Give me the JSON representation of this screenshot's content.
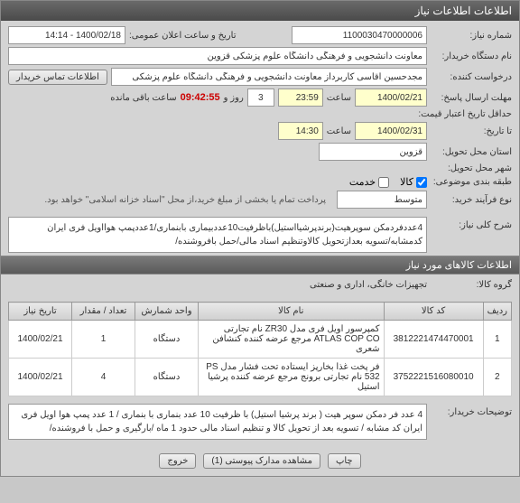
{
  "window_title": "اطلاعات اطلاعات نیاز",
  "form": {
    "need_number_label": "شماره نیاز:",
    "need_number": "1100030470000006",
    "public_announce_label": "تاریخ و ساعت اعلان عمومی:",
    "public_announce": "1400/02/18 - 14:14",
    "buyer_device_label": "نام دستگاه خریدار:",
    "buyer_device": "معاونت دانشجویی و فرهنگی دانشگاه علوم پزشکی قزوین",
    "requester_label": "درخواست کننده:",
    "requester": "مجدحسین آقاسی کاربرداز معاونت دانشجویی و فرهنگی دانشگاه علوم پزشکی",
    "contact_btn": "اطلاعات تماس خریدار",
    "deadline_label": "مهلت ارسال پاسخ:",
    "deadline_date": "1400/02/21",
    "time_label": "ساعت",
    "deadline_time": "23:59",
    "days_remaining": "3",
    "days_label": "روز و",
    "timer": "09:42:55",
    "remaining_label": "ساعت باقی مانده",
    "min_validity_label": "حداقل تاریخ اعتبار قیمت:",
    "until_label": "تا تاریخ:",
    "until_date": "1400/02/31",
    "until_time": "14:30",
    "delivery_state_label": "استان محل تحویل:",
    "delivery_state": "قزوین",
    "delivery_city_label": "شهر محل تحویل:",
    "budget_label": "طبقه بندی موضوعی:",
    "goods_chk": "کالا",
    "service_chk": "خدمت",
    "process_type_label": "نوع فرآیند خرید:",
    "process_type": "متوسط",
    "payment_note": "پرداخت تمام یا بخشی از مبلغ خرید،از محل \"اسناد خزانه اسلامی\" خواهد بود."
  },
  "summary": {
    "header": "شرح کلی نیاز:",
    "text": "4عددفردمکن سوپرهیت(برندپرشیااستیل)باظرفیت10عددبیماری بابنماری/1عددپمپ هوااویل فری ایران کدمشابه/تسویه بعدازتحویل کالاوتنظیم اسناد مالی/حمل بافروشنده/"
  },
  "goods_section": {
    "header": "اطلاعات کالاهای مورد نیاز",
    "group_label": "گروه کالا:",
    "group": "تجهیزات خانگی، اداری و صنعتی"
  },
  "table": {
    "headers": [
      "ردیف",
      "کد کالا",
      "نام کالا",
      "واحد شمارش",
      "تعداد / مقدار",
      "تاریخ نیاز"
    ],
    "rows": [
      {
        "idx": "1",
        "code": "3812221474470001",
        "name": "کمپرسور اویل فری مدل ZR30 نام تجارتی ATLAS COP CO مرجع عرضه کننده کنشافن شعری",
        "unit": "دستگاه",
        "qty": "1",
        "date": "1400/02/21"
      },
      {
        "idx": "2",
        "code": "3752221516080010",
        "name": "فر پخت غذا بخارپز ایستاده تحت فشار مدل PS 532 نام تجارتی برونج مرجع عرضه کننده پرشیا استیل",
        "unit": "دستگاه",
        "qty": "4",
        "date": "1400/02/21"
      }
    ]
  },
  "buyer_notes": {
    "label": "توضیحات خریدار:",
    "text": "4 عدد فر دمکن سوپر هیت ( برند پرشیا استیل) با ظرفیت 10 عدد بنماری با بنماری / 1 عدد پمپ هوا اویل فری ایران کد مشابه / تسویه بعد از تحویل کالا و تنظیم اسناد مالی حدود 1 ماه /بارگیری و حمل  با فروشنده/"
  },
  "footer": {
    "attachments_btn": "مشاهده مدارک پیوستی (1)",
    "exit_btn": "خروج",
    "print_btn": "چاپ"
  }
}
